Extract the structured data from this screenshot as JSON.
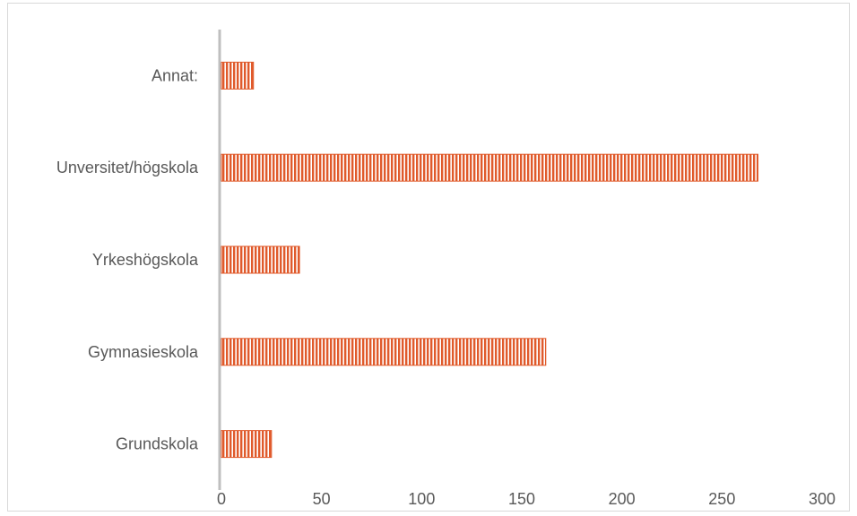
{
  "chart_data": {
    "type": "bar",
    "orientation": "horizontal",
    "categories": [
      "Grundskola",
      "Gymnasieskola",
      "Yrkeshögskola",
      "Unversitet/högskola",
      "Annat:"
    ],
    "values": [
      25,
      162,
      39,
      268,
      16
    ],
    "xlim": [
      0,
      300
    ],
    "xticks": [
      0,
      50,
      100,
      150,
      200,
      250,
      300
    ],
    "grid": false,
    "legend": "none",
    "bar_color": "#e05a2b",
    "bar_pattern": "vertical-stripes",
    "axis_color": "#bfbfbf",
    "text_color": "#595959"
  }
}
